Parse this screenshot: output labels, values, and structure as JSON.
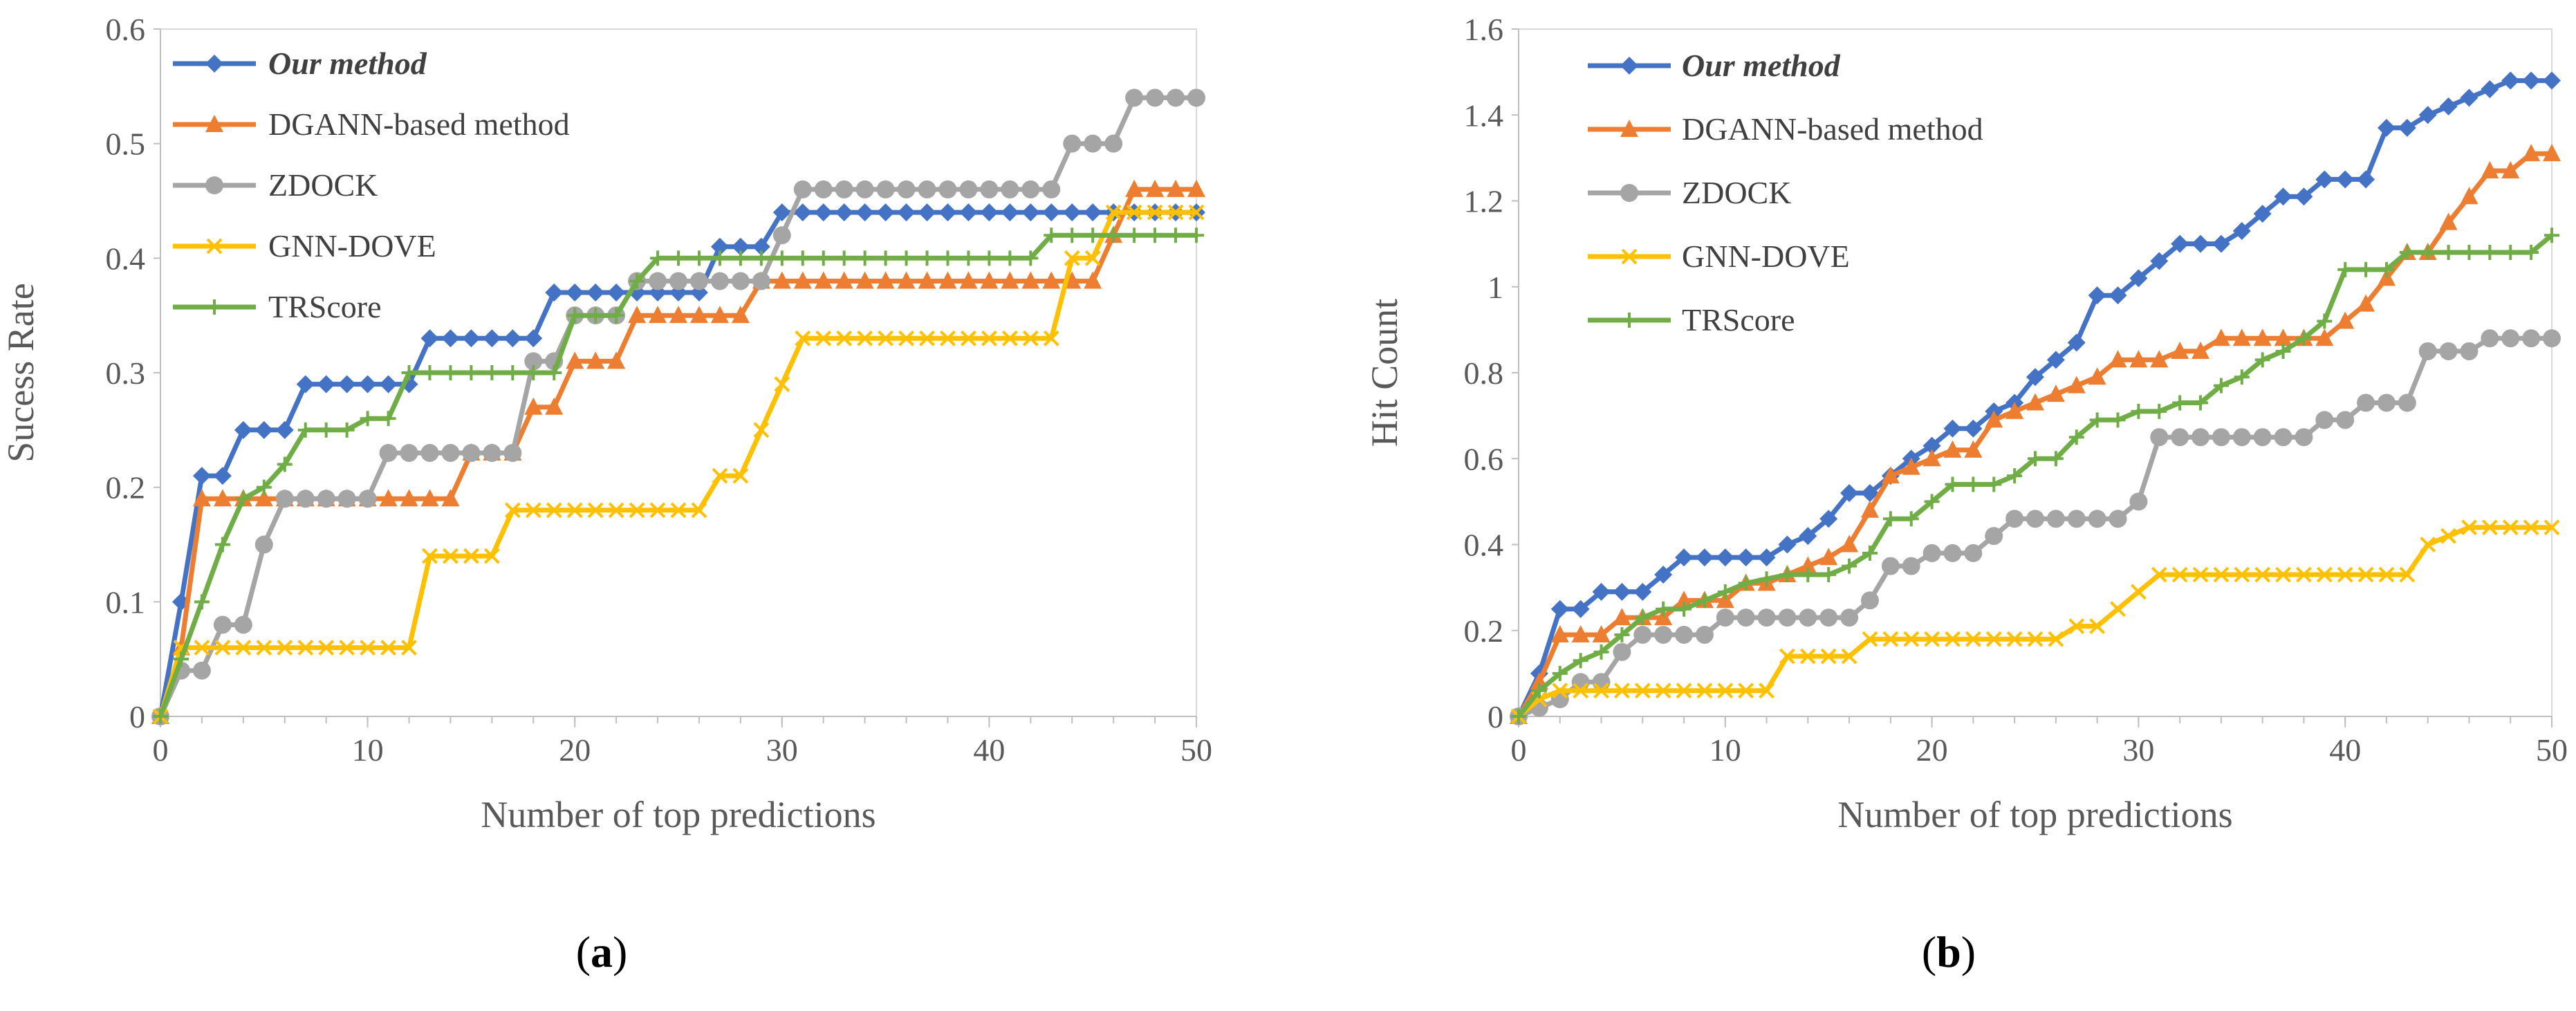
{
  "figure": {
    "panels": [
      {
        "id": "a",
        "label_prefix": "(",
        "label_letter": "a",
        "label_suffix": ")"
      },
      {
        "id": "b",
        "label_prefix": "(",
        "label_letter": "b",
        "label_suffix": ")"
      }
    ]
  },
  "chart_data": [
    {
      "type": "line",
      "panel": "a",
      "title": "",
      "xlabel": "Number of top predictions",
      "ylabel": "Sucess Rate",
      "xlim": [
        0,
        50
      ],
      "ylim": [
        0,
        0.6
      ],
      "xticks": [
        "0",
        "10",
        "20",
        "30",
        "40",
        "50"
      ],
      "yticks": [
        "0",
        "0.1",
        "0.2",
        "0.3",
        "0.4",
        "0.5",
        "0.6"
      ],
      "grid": false,
      "legend_position": "top-left",
      "x": [
        0,
        1,
        2,
        3,
        4,
        5,
        6,
        7,
        8,
        9,
        10,
        11,
        12,
        13,
        14,
        15,
        16,
        17,
        18,
        19,
        20,
        21,
        22,
        23,
        24,
        25,
        26,
        27,
        28,
        29,
        30,
        31,
        32,
        33,
        34,
        35,
        36,
        37,
        38,
        39,
        40,
        41,
        42,
        43,
        44,
        45,
        46,
        47,
        48,
        49,
        50
      ],
      "series": [
        {
          "name": "Our method",
          "color": "#4472C4",
          "marker": "diamond",
          "italic_bold": true,
          "values": [
            0,
            0.1,
            0.21,
            0.21,
            0.25,
            0.25,
            0.25,
            0.29,
            0.29,
            0.29,
            0.29,
            0.29,
            0.29,
            0.33,
            0.33,
            0.33,
            0.33,
            0.33,
            0.33,
            0.37,
            0.37,
            0.37,
            0.37,
            0.37,
            0.37,
            0.37,
            0.37,
            0.41,
            0.41,
            0.41,
            0.44,
            0.44,
            0.44,
            0.44,
            0.44,
            0.44,
            0.44,
            0.44,
            0.44,
            0.44,
            0.44,
            0.44,
            0.44,
            0.44,
            0.44,
            0.44,
            0.44,
            0.44,
            0.44,
            0.44,
            0.44
          ]
        },
        {
          "name": "DGANN-based method",
          "color": "#ED7D31",
          "marker": "triangle",
          "values": [
            0,
            0.06,
            0.19,
            0.19,
            0.19,
            0.19,
            0.19,
            0.19,
            0.19,
            0.19,
            0.19,
            0.19,
            0.19,
            0.19,
            0.19,
            0.23,
            0.23,
            0.23,
            0.27,
            0.27,
            0.31,
            0.31,
            0.31,
            0.35,
            0.35,
            0.35,
            0.35,
            0.35,
            0.35,
            0.38,
            0.38,
            0.38,
            0.38,
            0.38,
            0.38,
            0.38,
            0.38,
            0.38,
            0.38,
            0.38,
            0.38,
            0.38,
            0.38,
            0.38,
            0.38,
            0.38,
            0.42,
            0.46,
            0.46,
            0.46,
            0.46
          ]
        },
        {
          "name": "ZDOCK",
          "color": "#A5A5A5",
          "marker": "circle",
          "values": [
            0,
            0.04,
            0.04,
            0.08,
            0.08,
            0.15,
            0.19,
            0.19,
            0.19,
            0.19,
            0.19,
            0.23,
            0.23,
            0.23,
            0.23,
            0.23,
            0.23,
            0.23,
            0.31,
            0.31,
            0.35,
            0.35,
            0.35,
            0.38,
            0.38,
            0.38,
            0.38,
            0.38,
            0.38,
            0.38,
            0.42,
            0.46,
            0.46,
            0.46,
            0.46,
            0.46,
            0.46,
            0.46,
            0.46,
            0.46,
            0.46,
            0.46,
            0.46,
            0.46,
            0.5,
            0.5,
            0.5,
            0.54,
            0.54,
            0.54,
            0.54
          ]
        },
        {
          "name": "GNN-DOVE",
          "color": "#FFC000",
          "marker": "x",
          "values": [
            0,
            0.06,
            0.06,
            0.06,
            0.06,
            0.06,
            0.06,
            0.06,
            0.06,
            0.06,
            0.06,
            0.06,
            0.06,
            0.14,
            0.14,
            0.14,
            0.14,
            0.18,
            0.18,
            0.18,
            0.18,
            0.18,
            0.18,
            0.18,
            0.18,
            0.18,
            0.18,
            0.21,
            0.21,
            0.25,
            0.29,
            0.33,
            0.33,
            0.33,
            0.33,
            0.33,
            0.33,
            0.33,
            0.33,
            0.33,
            0.33,
            0.33,
            0.33,
            0.33,
            0.4,
            0.4,
            0.44,
            0.44,
            0.44,
            0.44,
            0.44
          ]
        },
        {
          "name": "TRScore",
          "color": "#70AD47",
          "marker": "plus",
          "values": [
            0,
            0.05,
            0.1,
            0.15,
            0.19,
            0.2,
            0.22,
            0.25,
            0.25,
            0.25,
            0.26,
            0.26,
            0.3,
            0.3,
            0.3,
            0.3,
            0.3,
            0.3,
            0.3,
            0.3,
            0.35,
            0.35,
            0.35,
            0.38,
            0.4,
            0.4,
            0.4,
            0.4,
            0.4,
            0.4,
            0.4,
            0.4,
            0.4,
            0.4,
            0.4,
            0.4,
            0.4,
            0.4,
            0.4,
            0.4,
            0.4,
            0.4,
            0.4,
            0.42,
            0.42,
            0.42,
            0.42,
            0.42,
            0.42,
            0.42,
            0.42
          ]
        }
      ]
    },
    {
      "type": "line",
      "panel": "b",
      "title": "",
      "xlabel": "Number of top predictions",
      "ylabel": "Hit Count",
      "xlim": [
        0,
        50
      ],
      "ylim": [
        0,
        1.6
      ],
      "xticks": [
        "0",
        "10",
        "20",
        "30",
        "40",
        "50"
      ],
      "yticks": [
        "0",
        "0.2",
        "0.4",
        "0.6",
        "0.8",
        "1",
        "1.2",
        "1.4",
        "1.6"
      ],
      "grid": false,
      "legend_position": "top-left",
      "x": [
        0,
        1,
        2,
        3,
        4,
        5,
        6,
        7,
        8,
        9,
        10,
        11,
        12,
        13,
        14,
        15,
        16,
        17,
        18,
        19,
        20,
        21,
        22,
        23,
        24,
        25,
        26,
        27,
        28,
        29,
        30,
        31,
        32,
        33,
        34,
        35,
        36,
        37,
        38,
        39,
        40,
        41,
        42,
        43,
        44,
        45,
        46,
        47,
        48,
        49,
        50
      ],
      "series": [
        {
          "name": "Our method",
          "color": "#4472C4",
          "marker": "diamond",
          "italic_bold": true,
          "values": [
            0,
            0.1,
            0.25,
            0.25,
            0.29,
            0.29,
            0.29,
            0.33,
            0.37,
            0.37,
            0.37,
            0.37,
            0.37,
            0.4,
            0.42,
            0.46,
            0.52,
            0.52,
            0.56,
            0.6,
            0.63,
            0.67,
            0.67,
            0.71,
            0.73,
            0.79,
            0.83,
            0.87,
            0.98,
            0.98,
            1.02,
            1.06,
            1.1,
            1.1,
            1.1,
            1.13,
            1.17,
            1.21,
            1.21,
            1.25,
            1.25,
            1.25,
            1.37,
            1.37,
            1.4,
            1.42,
            1.44,
            1.46,
            1.48,
            1.48,
            1.48
          ]
        },
        {
          "name": "DGANN-based method",
          "color": "#ED7D31",
          "marker": "triangle",
          "values": [
            0,
            0.08,
            0.19,
            0.19,
            0.19,
            0.23,
            0.23,
            0.23,
            0.27,
            0.27,
            0.27,
            0.31,
            0.31,
            0.33,
            0.35,
            0.37,
            0.4,
            0.48,
            0.56,
            0.58,
            0.6,
            0.62,
            0.62,
            0.69,
            0.71,
            0.73,
            0.75,
            0.77,
            0.79,
            0.83,
            0.83,
            0.83,
            0.85,
            0.85,
            0.88,
            0.88,
            0.88,
            0.88,
            0.88,
            0.88,
            0.92,
            0.96,
            1.02,
            1.08,
            1.08,
            1.15,
            1.21,
            1.27,
            1.27,
            1.31,
            1.31
          ]
        },
        {
          "name": "ZDOCK",
          "color": "#A5A5A5",
          "marker": "circle",
          "values": [
            0,
            0.02,
            0.04,
            0.08,
            0.08,
            0.15,
            0.19,
            0.19,
            0.19,
            0.19,
            0.23,
            0.23,
            0.23,
            0.23,
            0.23,
            0.23,
            0.23,
            0.27,
            0.35,
            0.35,
            0.38,
            0.38,
            0.38,
            0.42,
            0.46,
            0.46,
            0.46,
            0.46,
            0.46,
            0.46,
            0.5,
            0.65,
            0.65,
            0.65,
            0.65,
            0.65,
            0.65,
            0.65,
            0.65,
            0.69,
            0.69,
            0.73,
            0.73,
            0.73,
            0.85,
            0.85,
            0.85,
            0.88,
            0.88,
            0.88,
            0.88
          ]
        },
        {
          "name": "GNN-DOVE",
          "color": "#FFC000",
          "marker": "x",
          "values": [
            0,
            0.04,
            0.06,
            0.06,
            0.06,
            0.06,
            0.06,
            0.06,
            0.06,
            0.06,
            0.06,
            0.06,
            0.06,
            0.14,
            0.14,
            0.14,
            0.14,
            0.18,
            0.18,
            0.18,
            0.18,
            0.18,
            0.18,
            0.18,
            0.18,
            0.18,
            0.18,
            0.21,
            0.21,
            0.25,
            0.29,
            0.33,
            0.33,
            0.33,
            0.33,
            0.33,
            0.33,
            0.33,
            0.33,
            0.33,
            0.33,
            0.33,
            0.33,
            0.33,
            0.4,
            0.42,
            0.44,
            0.44,
            0.44,
            0.44,
            0.44
          ]
        },
        {
          "name": "TRScore",
          "color": "#70AD47",
          "marker": "plus",
          "values": [
            0,
            0.06,
            0.1,
            0.13,
            0.15,
            0.19,
            0.23,
            0.25,
            0.25,
            0.27,
            0.29,
            0.31,
            0.32,
            0.33,
            0.33,
            0.33,
            0.35,
            0.38,
            0.46,
            0.46,
            0.5,
            0.54,
            0.54,
            0.54,
            0.56,
            0.6,
            0.6,
            0.65,
            0.69,
            0.69,
            0.71,
            0.71,
            0.73,
            0.73,
            0.77,
            0.79,
            0.83,
            0.85,
            0.88,
            0.92,
            1.04,
            1.04,
            1.04,
            1.08,
            1.08,
            1.08,
            1.08,
            1.08,
            1.08,
            1.08,
            1.12
          ]
        }
      ]
    }
  ]
}
